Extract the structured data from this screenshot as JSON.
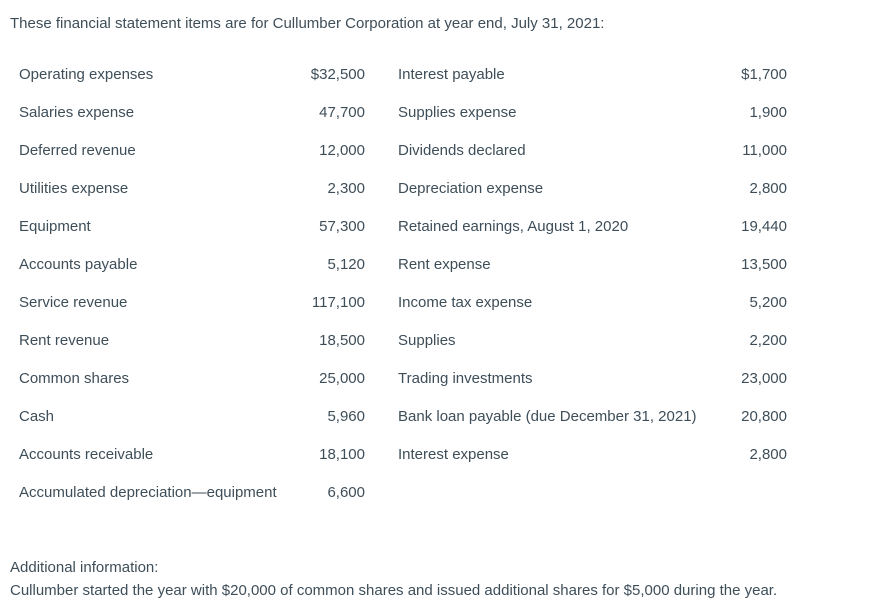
{
  "colors": {
    "text": "#3e4e59",
    "background": "#ffffff"
  },
  "page": {
    "intro": "These financial statement items are for Cullumber Corporation at year end, July 31, 2021:"
  },
  "table": {
    "columns": [
      {
        "rows": [
          {
            "label": "Operating expenses",
            "value": "$32,500"
          },
          {
            "label": "Salaries expense",
            "value": "47,700"
          },
          {
            "label": "Deferred revenue",
            "value": "12,000"
          },
          {
            "label": "Utilities expense",
            "value": "2,300"
          },
          {
            "label": "Equipment",
            "value": "57,300"
          },
          {
            "label": "Accounts payable",
            "value": "5,120"
          },
          {
            "label": "Service revenue",
            "value": "117,100"
          },
          {
            "label": "Rent revenue",
            "value": "18,500"
          },
          {
            "label": "Common shares",
            "value": "25,000"
          },
          {
            "label": "Cash",
            "value": "5,960"
          },
          {
            "label": "Accounts receivable",
            "value": "18,100"
          },
          {
            "label": "Accumulated depreciation—equipment",
            "value": "6,600"
          }
        ]
      },
      {
        "rows": [
          {
            "label": "Interest payable",
            "value": "$1,700"
          },
          {
            "label": "Supplies expense",
            "value": "1,900"
          },
          {
            "label": "Dividends declared",
            "value": "11,000"
          },
          {
            "label": "Depreciation expense",
            "value": "2,800"
          },
          {
            "label": "Retained earnings, August 1, 2020",
            "value": "19,440"
          },
          {
            "label": "Rent expense",
            "value": "13,500"
          },
          {
            "label": "Income tax expense",
            "value": "5,200"
          },
          {
            "label": "Supplies",
            "value": "2,200"
          },
          {
            "label": "Trading investments",
            "value": "23,000"
          },
          {
            "label": "Bank loan payable (due December 31, 2021)",
            "value": "20,800"
          },
          {
            "label": "Interest expense",
            "value": "2,800"
          }
        ]
      }
    ]
  },
  "additional_info": {
    "heading": "Additional information:",
    "text": "Cullumber started the year with $20,000 of common shares and issued additional shares for $5,000 during the year."
  }
}
